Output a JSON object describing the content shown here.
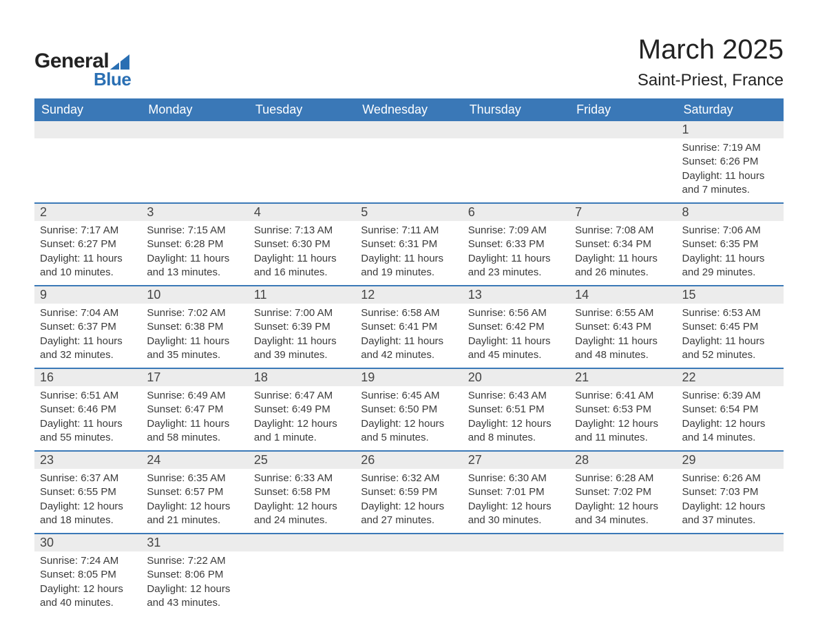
{
  "logo": {
    "text1": "General",
    "text2": "Blue",
    "mark_color": "#2a6fb3"
  },
  "header": {
    "month_title": "March 2025",
    "location": "Saint-Priest, France"
  },
  "calendar": {
    "type": "table",
    "background_color": "#ffffff",
    "header_bg": "#3a78b7",
    "header_text_color": "#ffffff",
    "daynum_bg": "#ececec",
    "row_border_color": "#3a78b7",
    "text_color": "#3a3a3a",
    "header_fontsize": 18,
    "daynum_fontsize": 18,
    "info_fontsize": 15,
    "columns": [
      "Sunday",
      "Monday",
      "Tuesday",
      "Wednesday",
      "Thursday",
      "Friday",
      "Saturday"
    ],
    "weeks": [
      [
        {},
        {},
        {},
        {},
        {},
        {},
        {
          "day": "1",
          "sunrise": "Sunrise: 7:19 AM",
          "sunset": "Sunset: 6:26 PM",
          "daylight1": "Daylight: 11 hours",
          "daylight2": "and 7 minutes."
        }
      ],
      [
        {
          "day": "2",
          "sunrise": "Sunrise: 7:17 AM",
          "sunset": "Sunset: 6:27 PM",
          "daylight1": "Daylight: 11 hours",
          "daylight2": "and 10 minutes."
        },
        {
          "day": "3",
          "sunrise": "Sunrise: 7:15 AM",
          "sunset": "Sunset: 6:28 PM",
          "daylight1": "Daylight: 11 hours",
          "daylight2": "and 13 minutes."
        },
        {
          "day": "4",
          "sunrise": "Sunrise: 7:13 AM",
          "sunset": "Sunset: 6:30 PM",
          "daylight1": "Daylight: 11 hours",
          "daylight2": "and 16 minutes."
        },
        {
          "day": "5",
          "sunrise": "Sunrise: 7:11 AM",
          "sunset": "Sunset: 6:31 PM",
          "daylight1": "Daylight: 11 hours",
          "daylight2": "and 19 minutes."
        },
        {
          "day": "6",
          "sunrise": "Sunrise: 7:09 AM",
          "sunset": "Sunset: 6:33 PM",
          "daylight1": "Daylight: 11 hours",
          "daylight2": "and 23 minutes."
        },
        {
          "day": "7",
          "sunrise": "Sunrise: 7:08 AM",
          "sunset": "Sunset: 6:34 PM",
          "daylight1": "Daylight: 11 hours",
          "daylight2": "and 26 minutes."
        },
        {
          "day": "8",
          "sunrise": "Sunrise: 7:06 AM",
          "sunset": "Sunset: 6:35 PM",
          "daylight1": "Daylight: 11 hours",
          "daylight2": "and 29 minutes."
        }
      ],
      [
        {
          "day": "9",
          "sunrise": "Sunrise: 7:04 AM",
          "sunset": "Sunset: 6:37 PM",
          "daylight1": "Daylight: 11 hours",
          "daylight2": "and 32 minutes."
        },
        {
          "day": "10",
          "sunrise": "Sunrise: 7:02 AM",
          "sunset": "Sunset: 6:38 PM",
          "daylight1": "Daylight: 11 hours",
          "daylight2": "and 35 minutes."
        },
        {
          "day": "11",
          "sunrise": "Sunrise: 7:00 AM",
          "sunset": "Sunset: 6:39 PM",
          "daylight1": "Daylight: 11 hours",
          "daylight2": "and 39 minutes."
        },
        {
          "day": "12",
          "sunrise": "Sunrise: 6:58 AM",
          "sunset": "Sunset: 6:41 PM",
          "daylight1": "Daylight: 11 hours",
          "daylight2": "and 42 minutes."
        },
        {
          "day": "13",
          "sunrise": "Sunrise: 6:56 AM",
          "sunset": "Sunset: 6:42 PM",
          "daylight1": "Daylight: 11 hours",
          "daylight2": "and 45 minutes."
        },
        {
          "day": "14",
          "sunrise": "Sunrise: 6:55 AM",
          "sunset": "Sunset: 6:43 PM",
          "daylight1": "Daylight: 11 hours",
          "daylight2": "and 48 minutes."
        },
        {
          "day": "15",
          "sunrise": "Sunrise: 6:53 AM",
          "sunset": "Sunset: 6:45 PM",
          "daylight1": "Daylight: 11 hours",
          "daylight2": "and 52 minutes."
        }
      ],
      [
        {
          "day": "16",
          "sunrise": "Sunrise: 6:51 AM",
          "sunset": "Sunset: 6:46 PM",
          "daylight1": "Daylight: 11 hours",
          "daylight2": "and 55 minutes."
        },
        {
          "day": "17",
          "sunrise": "Sunrise: 6:49 AM",
          "sunset": "Sunset: 6:47 PM",
          "daylight1": "Daylight: 11 hours",
          "daylight2": "and 58 minutes."
        },
        {
          "day": "18",
          "sunrise": "Sunrise: 6:47 AM",
          "sunset": "Sunset: 6:49 PM",
          "daylight1": "Daylight: 12 hours",
          "daylight2": "and 1 minute."
        },
        {
          "day": "19",
          "sunrise": "Sunrise: 6:45 AM",
          "sunset": "Sunset: 6:50 PM",
          "daylight1": "Daylight: 12 hours",
          "daylight2": "and 5 minutes."
        },
        {
          "day": "20",
          "sunrise": "Sunrise: 6:43 AM",
          "sunset": "Sunset: 6:51 PM",
          "daylight1": "Daylight: 12 hours",
          "daylight2": "and 8 minutes."
        },
        {
          "day": "21",
          "sunrise": "Sunrise: 6:41 AM",
          "sunset": "Sunset: 6:53 PM",
          "daylight1": "Daylight: 12 hours",
          "daylight2": "and 11 minutes."
        },
        {
          "day": "22",
          "sunrise": "Sunrise: 6:39 AM",
          "sunset": "Sunset: 6:54 PM",
          "daylight1": "Daylight: 12 hours",
          "daylight2": "and 14 minutes."
        }
      ],
      [
        {
          "day": "23",
          "sunrise": "Sunrise: 6:37 AM",
          "sunset": "Sunset: 6:55 PM",
          "daylight1": "Daylight: 12 hours",
          "daylight2": "and 18 minutes."
        },
        {
          "day": "24",
          "sunrise": "Sunrise: 6:35 AM",
          "sunset": "Sunset: 6:57 PM",
          "daylight1": "Daylight: 12 hours",
          "daylight2": "and 21 minutes."
        },
        {
          "day": "25",
          "sunrise": "Sunrise: 6:33 AM",
          "sunset": "Sunset: 6:58 PM",
          "daylight1": "Daylight: 12 hours",
          "daylight2": "and 24 minutes."
        },
        {
          "day": "26",
          "sunrise": "Sunrise: 6:32 AM",
          "sunset": "Sunset: 6:59 PM",
          "daylight1": "Daylight: 12 hours",
          "daylight2": "and 27 minutes."
        },
        {
          "day": "27",
          "sunrise": "Sunrise: 6:30 AM",
          "sunset": "Sunset: 7:01 PM",
          "daylight1": "Daylight: 12 hours",
          "daylight2": "and 30 minutes."
        },
        {
          "day": "28",
          "sunrise": "Sunrise: 6:28 AM",
          "sunset": "Sunset: 7:02 PM",
          "daylight1": "Daylight: 12 hours",
          "daylight2": "and 34 minutes."
        },
        {
          "day": "29",
          "sunrise": "Sunrise: 6:26 AM",
          "sunset": "Sunset: 7:03 PM",
          "daylight1": "Daylight: 12 hours",
          "daylight2": "and 37 minutes."
        }
      ],
      [
        {
          "day": "30",
          "sunrise": "Sunrise: 7:24 AM",
          "sunset": "Sunset: 8:05 PM",
          "daylight1": "Daylight: 12 hours",
          "daylight2": "and 40 minutes."
        },
        {
          "day": "31",
          "sunrise": "Sunrise: 7:22 AM",
          "sunset": "Sunset: 8:06 PM",
          "daylight1": "Daylight: 12 hours",
          "daylight2": "and 43 minutes."
        },
        {},
        {},
        {},
        {},
        {}
      ]
    ]
  }
}
